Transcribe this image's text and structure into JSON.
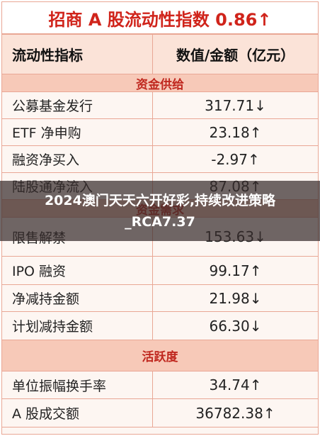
{
  "title": "招商 A 股流动性指数 0.86↑",
  "header": [
    "流动性指标",
    "数值/金额（亿元）"
  ],
  "sections": [
    {
      "name": "资金供给",
      "rows": [
        [
          "公募基金发行",
          "317.71↓"
        ],
        [
          "ETF 净申购",
          "23.18↑"
        ],
        [
          "融资净买入",
          "-2.97↑"
        ],
        [
          "陆股通净流入",
          "87.08↑"
        ]
      ]
    },
    {
      "name": "资金需求",
      "rows": [
        [
          "限售解禁",
          "153.63↓"
        ],
        [
          "IPO 融资",
          "99.17↑"
        ],
        [
          "净减持金额",
          "21.98↓"
        ],
        [
          "计划减持金额",
          "66.30↓"
        ]
      ]
    },
    {
      "name": "活跃度",
      "rows": [
        [
          "单位振幅换手率",
          "34.74↑"
        ],
        [
          "A 股成交额",
          "36782.38↑"
        ]
      ]
    }
  ],
  "overlay_caption": "2024澳门天天六开好彩,持续改进策略_RCA7.37"
}
